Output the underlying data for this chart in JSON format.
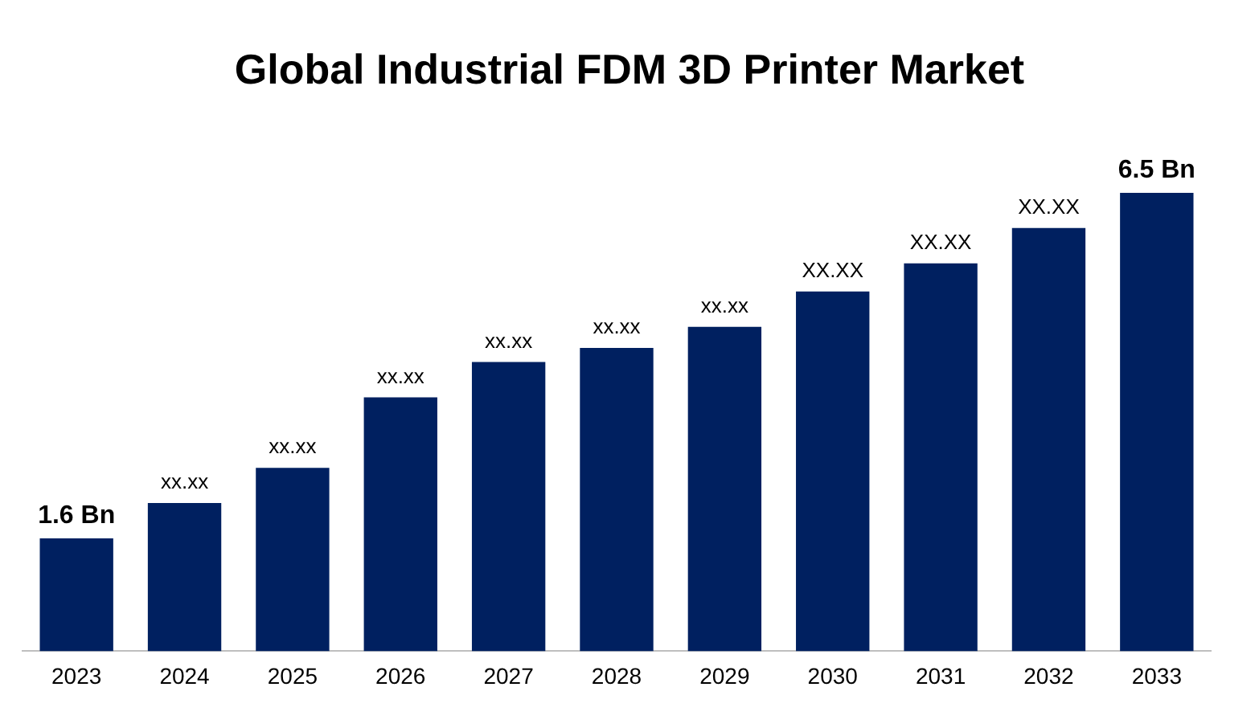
{
  "chart_data": {
    "type": "bar",
    "title": "Global Industrial FDM 3D Printer Market",
    "categories": [
      "2023",
      "2024",
      "2025",
      "2026",
      "2027",
      "2028",
      "2029",
      "2030",
      "2031",
      "2032",
      "2033"
    ],
    "values": [
      1.6,
      2.1,
      2.6,
      3.6,
      4.1,
      4.3,
      4.6,
      5.1,
      5.5,
      6,
      6.5
    ],
    "value_labels": [
      "1.6 Bn",
      "xx.xx",
      "xx.xx",
      "xx.xx",
      "xx.xx",
      "xx.xx",
      "xx.xx",
      "XX.XX",
      "XX.XX",
      "XX.XX",
      "6.5 Bn"
    ],
    "color": "#002060",
    "grid": false,
    "legend": false,
    "tick_labels": "x"
  }
}
